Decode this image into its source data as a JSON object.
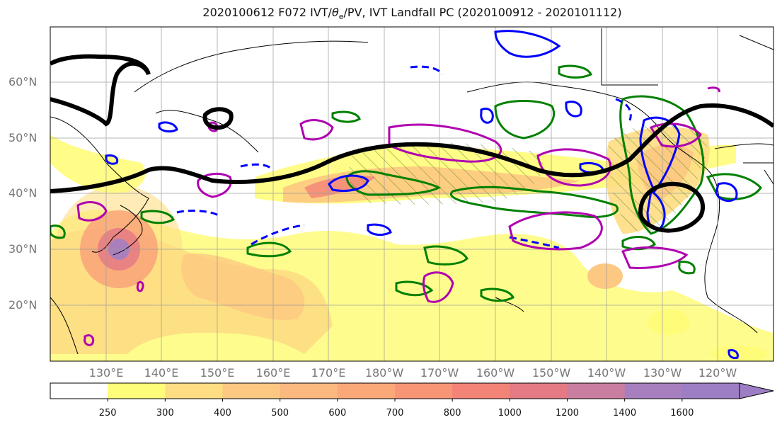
{
  "title": {
    "prefix": "2020100612 F072 IVT/",
    "theta": "θ",
    "theta_sub": "e",
    "suffix": "/PV, IVT Landfall PC (2020100912 - 2020101112)"
  },
  "map": {
    "lat_labels": [
      "60°N",
      "50°N",
      "40°N",
      "30°N",
      "20°N"
    ],
    "lon_labels": [
      "130°E",
      "140°E",
      "150°E",
      "160°E",
      "170°E",
      "180°W",
      "170°W",
      "160°W",
      "150°W",
      "140°W",
      "130°W",
      "120°W"
    ],
    "extent": {
      "lon": [
        120,
        250
      ],
      "lat": [
        10,
        70
      ]
    },
    "gridlines": true
  },
  "colorbar": {
    "ticks": [
      "250",
      "300",
      "400",
      "500",
      "600",
      "700",
      "800",
      "1000",
      "1200",
      "1400",
      "1600"
    ],
    "colors": [
      "#ffffff",
      "#fffc7a",
      "#fedd83",
      "#fdc882",
      "#fbb87f",
      "#fba878",
      "#f89577",
      "#f48377",
      "#e57a85",
      "#c97e9f",
      "#a77fbf",
      "#9d7ec4"
    ],
    "extend": "max"
  },
  "legend_colors": {
    "ivt_fill": "#fde68a",
    "pc_contour": "#000000",
    "theta_contour": "#008000",
    "pv_positive": "#0000ff",
    "pc_hatch": "#b000b0"
  }
}
